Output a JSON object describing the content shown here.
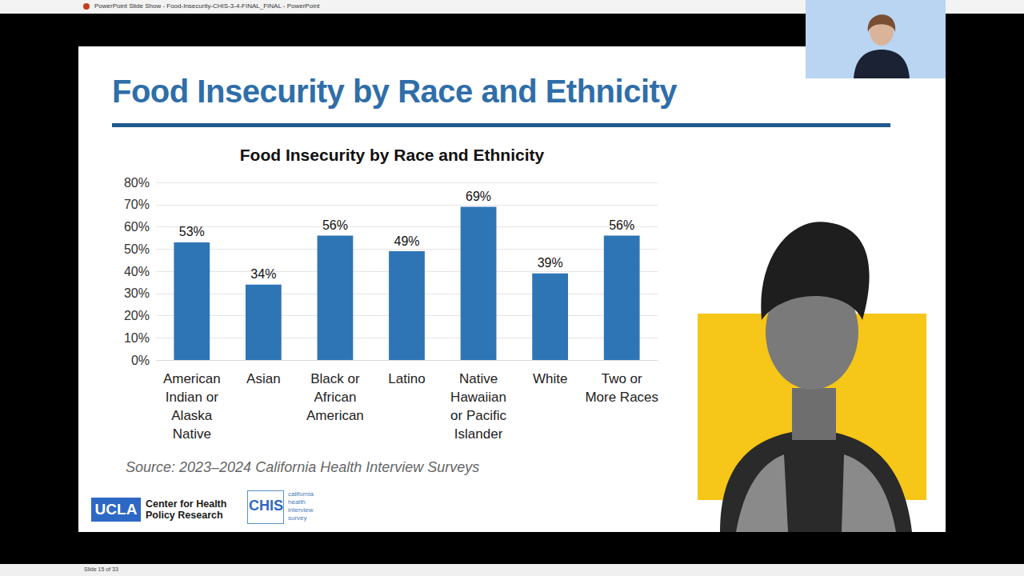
{
  "window": {
    "title": "PowerPoint Slide Show - Food-Insecurity-CHIS-3-4-FINAL_FINAL - PowerPoint",
    "status": "Slide 15 of 33"
  },
  "slide": {
    "title": "Food Insecurity by Race and Ethnicity",
    "source": "Source: 2023–2024 California Health Interview Surveys",
    "logos": [
      "UCLA",
      "Center for Health Policy Research",
      "CHIS",
      "california health interview survey"
    ],
    "number": 15
  },
  "chart_data": {
    "type": "bar",
    "title": "Food Insecurity by Race and Ethnicity",
    "categories": [
      "American Indian or Alaska Native",
      "Asian",
      "Black or African American",
      "Latino",
      "Native Hawaiian or Pacific Islander",
      "White",
      "Two or More Races"
    ],
    "values": [
      53,
      34,
      56,
      49,
      69,
      39,
      56
    ],
    "value_labels": [
      "53%",
      "34%",
      "56%",
      "49%",
      "69%",
      "39%",
      "56%"
    ],
    "color": "#2e75b6",
    "ylim": [
      0,
      80
    ],
    "yticks": [
      {
        "value": 0,
        "label": "0%"
      },
      {
        "value": 10,
        "label": "10%"
      },
      {
        "value": 20,
        "label": "20%"
      },
      {
        "value": 30,
        "label": "30%"
      },
      {
        "value": 40,
        "label": "40%"
      },
      {
        "value": 50,
        "label": "50%"
      },
      {
        "value": 60,
        "label": "60%"
      },
      {
        "value": 70,
        "label": "70%"
      },
      {
        "value": 80,
        "label": "80%"
      }
    ],
    "grid": true,
    "data_labels": true
  }
}
